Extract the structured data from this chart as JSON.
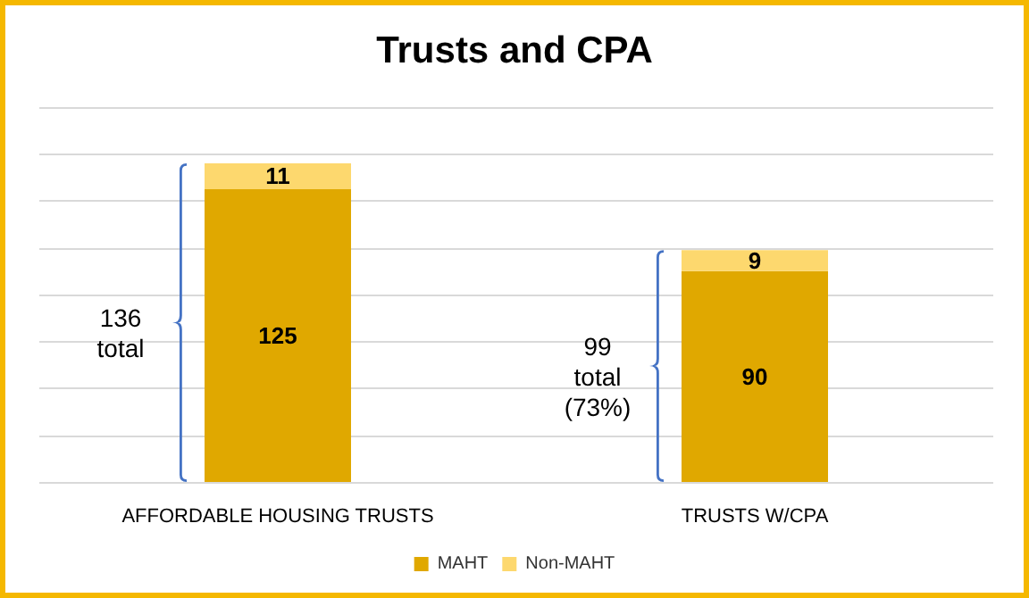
{
  "chart_data": {
    "type": "bar",
    "title": "Trusts and CPA",
    "categories": [
      "AFFORDABLE HOUSING TRUSTS",
      "TRUSTS W/CPA"
    ],
    "series": [
      {
        "name": "MAHT",
        "color": "#e0a800",
        "values": [
          125,
          90
        ]
      },
      {
        "name": "Non-MAHT",
        "color": "#fdd86e",
        "values": [
          11,
          9
        ]
      }
    ],
    "stacked": true,
    "data_labels": true,
    "ylim": [
      0,
      160
    ],
    "yticks": [
      {
        "value": 0,
        "label": null
      },
      {
        "value": 20,
        "label": null
      },
      {
        "value": 40,
        "label": null
      },
      {
        "value": 60,
        "label": null
      },
      {
        "value": 80,
        "label": null
      },
      {
        "value": 100,
        "label": null
      },
      {
        "value": 120,
        "label": null
      },
      {
        "value": 140,
        "label": null
      },
      {
        "value": 160,
        "label": null
      }
    ],
    "tick_labels": "x",
    "grid": "y",
    "legend": "bottom",
    "annotations": [
      "136 total",
      "99 total (73%)"
    ]
  }
}
